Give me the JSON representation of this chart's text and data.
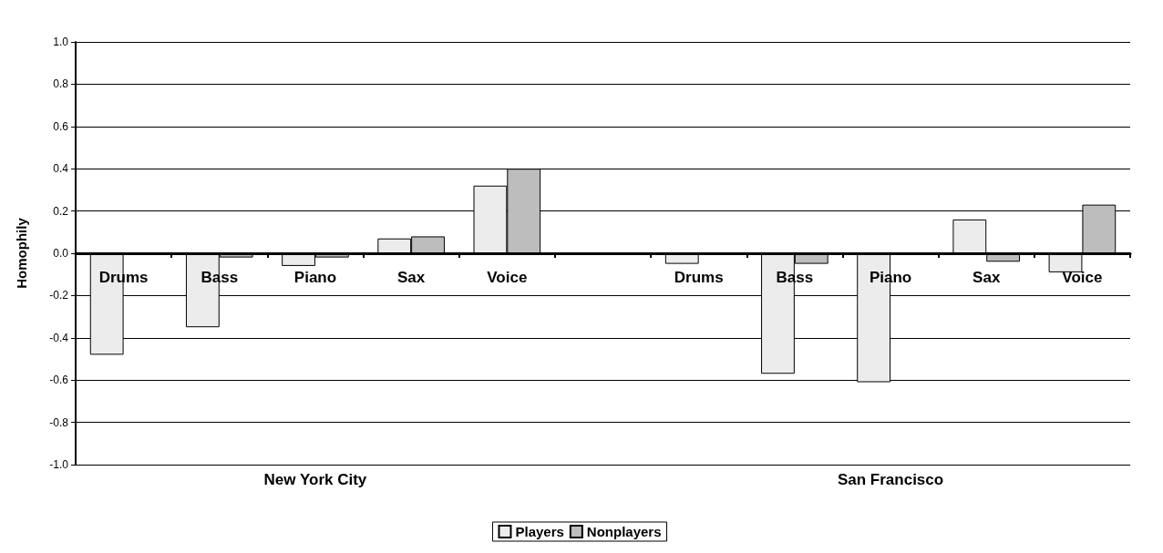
{
  "chart_data": {
    "type": "bar",
    "categories": [
      "Drums",
      "Bass",
      "Piano",
      "Sax",
      "Voice",
      null,
      "Drums",
      "Bass",
      "Piano",
      "Sax",
      "Voice"
    ],
    "series": [
      {
        "name": "Players",
        "color": "#ececec",
        "values": [
          -0.48,
          -0.35,
          -0.06,
          0.07,
          0.32,
          null,
          -0.05,
          -0.57,
          -0.61,
          0.16,
          -0.09
        ]
      },
      {
        "name": "Nonplayers",
        "color": "#bdbdbd",
        "values": [
          null,
          -0.02,
          -0.02,
          0.08,
          0.4,
          null,
          null,
          -0.05,
          null,
          -0.04,
          0.23
        ]
      }
    ],
    "ylabel": "Homophily",
    "ylim": [
      -1,
      1
    ],
    "yticks": [
      {
        "value": -1,
        "label": "-1.0"
      },
      {
        "value": -0.8,
        "label": "-0.8"
      },
      {
        "value": -0.6,
        "label": "-0.6"
      },
      {
        "value": -0.4,
        "label": "-0.4"
      },
      {
        "value": -0.2,
        "label": "-0.2"
      },
      {
        "value": 0,
        "label": "0.0"
      },
      {
        "value": 0.2,
        "label": "0.2"
      },
      {
        "value": 0.4,
        "label": "0.4"
      },
      {
        "value": 0.6,
        "label": "0.6"
      },
      {
        "value": 0.8,
        "label": "0.8"
      },
      {
        "value": 1,
        "label": "1.0"
      }
    ],
    "annotations": [
      "New York City",
      "San Francisco"
    ],
    "grid": "y",
    "legend": "bottom"
  }
}
